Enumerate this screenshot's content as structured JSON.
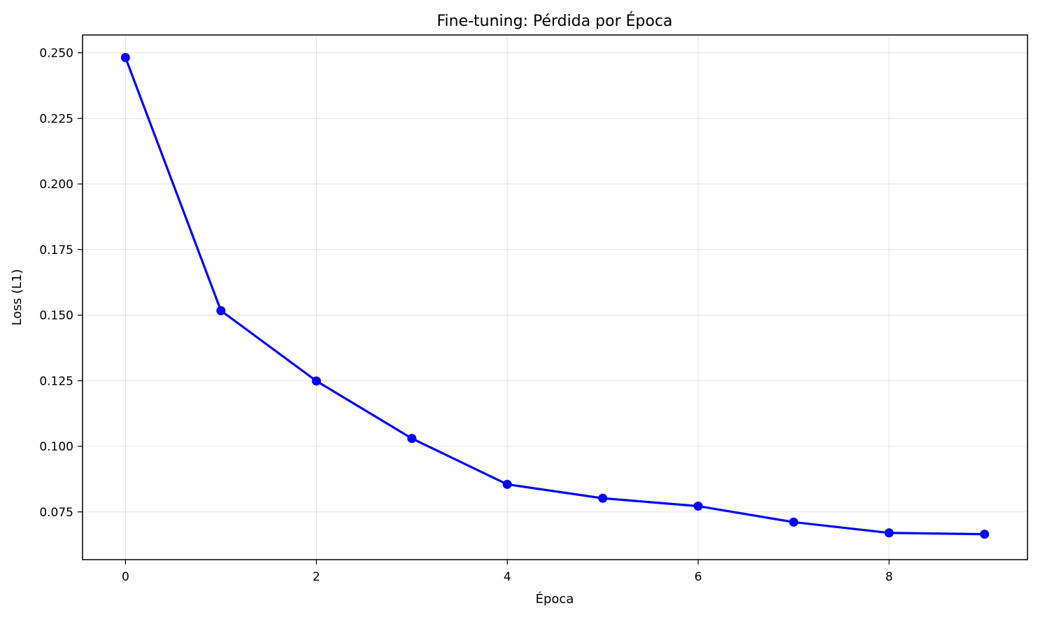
{
  "chart_data": {
    "type": "line",
    "title": "Fine-tuning: Pérdida por Época",
    "xlabel": "Época",
    "ylabel": "Loss (L1)",
    "x": [
      0,
      1,
      2,
      3,
      4,
      5,
      6,
      7,
      8,
      9
    ],
    "series": [
      {
        "values": [
          0.2482,
          0.1517,
          0.1249,
          0.103,
          0.0855,
          0.0802,
          0.0772,
          0.0711,
          0.067,
          0.0665
        ],
        "color": "#0000ff",
        "marker": "circle"
      }
    ],
    "xlim": [
      -0.45,
      9.45
    ],
    "ylim": [
      0.0568,
      0.2568
    ],
    "xticks": [
      0,
      2,
      4,
      6,
      8
    ],
    "xtick_labels": [
      "0",
      "2",
      "4",
      "6",
      "8"
    ],
    "yticks": [
      0.075,
      0.1,
      0.125,
      0.15,
      0.175,
      0.2,
      0.225,
      0.25
    ],
    "ytick_labels": [
      "0.075",
      "0.100",
      "0.125",
      "0.150",
      "0.175",
      "0.200",
      "0.225",
      "0.250"
    ],
    "grid": true,
    "legend": false
  }
}
